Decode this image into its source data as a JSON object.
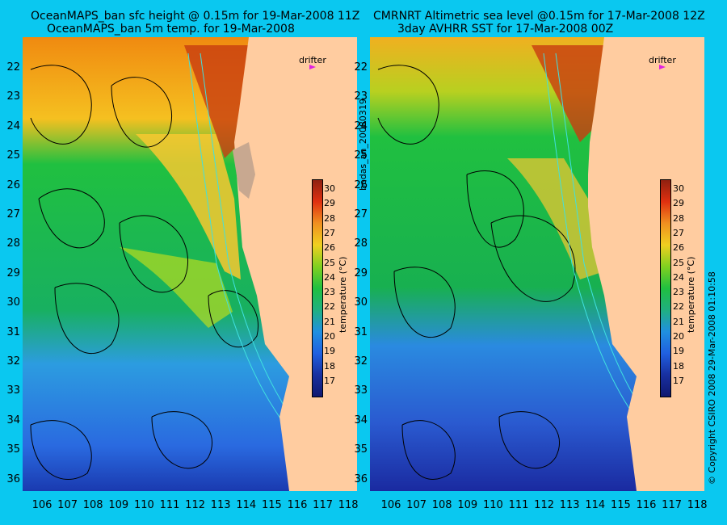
{
  "left_panel": {
    "title_line1": "OceanMAPS_ban sfc height @ 0.15m for 19-Mar-2008 11Z",
    "title_line2": "OceanMAPS_ban 5m temp. for 19-Mar-2008"
  },
  "right_panel": {
    "title_line1": "CMRNRT Altimetric sea level  @0.15m  for 17-Mar-2008 12Z",
    "title_line2": "3day AVHRR SST for 17-Mar-2008 00Z"
  },
  "drifter_label": "drifter",
  "latitude_labels": [
    "22",
    "23",
    "24",
    "25",
    "26",
    "27",
    "28",
    "29",
    "30",
    "31",
    "32",
    "33",
    "34",
    "35",
    "36"
  ],
  "longitude_labels": [
    "106",
    "107",
    "108",
    "109",
    "110",
    "111",
    "112",
    "113",
    "114",
    "115",
    "116",
    "117",
    "118"
  ],
  "colorbar": {
    "title": "temperature (°C)",
    "ticks": [
      "30",
      "29",
      "28",
      "27",
      "26",
      "25",
      "24",
      "23",
      "22",
      "21",
      "20",
      "19",
      "18",
      "17"
    ]
  },
  "middle_vertical_text": "bodas_an_20080319",
  "right_vertical_text": "© Copyright CSIRO 2008   29-Mar-2008 01:10:58",
  "colors": {
    "background": "#0ac8f0",
    "land": "#ffcca0",
    "drifter": "#e020e0",
    "contour": "#000000",
    "bathymetry": "#40e0e0"
  }
}
